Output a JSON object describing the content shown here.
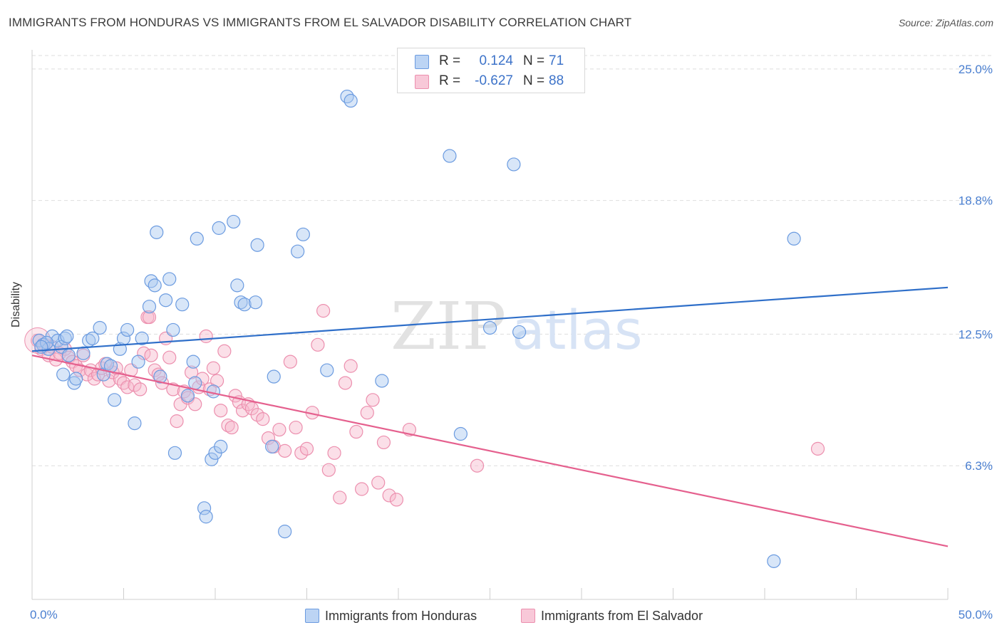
{
  "title": "IMMIGRANTS FROM HONDURAS VS IMMIGRANTS FROM EL SALVADOR DISABILITY CORRELATION CHART",
  "source": "Source: ZipAtlas.com",
  "watermark": {
    "zip": "ZIP",
    "atlas": "atlas"
  },
  "stats": {
    "honduras": {
      "r_label": "R =",
      "r_value": "0.124",
      "n_label": "N =",
      "n_value": "71"
    },
    "salvador": {
      "r_label": "R =",
      "r_value": "-0.627",
      "n_label": "N =",
      "n_value": "88"
    }
  },
  "legend": {
    "honduras": "Immigrants from Honduras",
    "salvador": "Immigrants from El Salvador"
  },
  "colors": {
    "honduras_fill": "#a9c8f0",
    "honduras_stroke": "#6b9be0",
    "honduras_line": "#2f6fc9",
    "salvador_fill": "#f6b9cc",
    "salvador_stroke": "#ec8fae",
    "salvador_line": "#e5608e"
  },
  "chart_data": {
    "type": "scatter",
    "title": "IMMIGRANTS FROM HONDURAS VS IMMIGRANTS FROM EL SALVADOR DISABILITY CORRELATION CHART",
    "xlabel": "",
    "ylabel": "Disability",
    "xlim": [
      0,
      50
    ],
    "ylim": [
      0,
      25.9
    ],
    "x_tick_labels": [
      {
        "value": 0,
        "label": "0.0%"
      },
      {
        "value": 50,
        "label": "50.0%"
      }
    ],
    "y_tick_labels": [
      {
        "value": 6.3,
        "label": "6.3%"
      },
      {
        "value": 12.5,
        "label": "12.5%"
      },
      {
        "value": 18.8,
        "label": "18.8%"
      },
      {
        "value": 25.0,
        "label": "25.0%"
      }
    ],
    "grid": "horizontal-dashed",
    "legend_position": "bottom",
    "series": [
      {
        "name": "Immigrants from Honduras",
        "trend": {
          "x": [
            0,
            50
          ],
          "y": [
            11.7,
            14.7
          ]
        },
        "points": [
          [
            0.4,
            12.2
          ],
          [
            0.6,
            12.0
          ],
          [
            0.9,
            11.8
          ],
          [
            1.1,
            12.4
          ],
          [
            1.4,
            12.2
          ],
          [
            1.6,
            11.9
          ],
          [
            1.8,
            12.3
          ],
          [
            0.8,
            12.1
          ],
          [
            0.5,
            11.9
          ],
          [
            1.9,
            12.4
          ],
          [
            1.7,
            10.6
          ],
          [
            2.3,
            10.2
          ],
          [
            2.4,
            10.4
          ],
          [
            2.8,
            11.6
          ],
          [
            3.1,
            12.2
          ],
          [
            3.3,
            12.3
          ],
          [
            3.7,
            12.8
          ],
          [
            3.9,
            10.6
          ],
          [
            4.1,
            11.1
          ],
          [
            4.3,
            11.0
          ],
          [
            4.5,
            9.4
          ],
          [
            4.8,
            11.8
          ],
          [
            5.0,
            12.3
          ],
          [
            5.2,
            12.7
          ],
          [
            5.6,
            8.3
          ],
          [
            5.8,
            11.2
          ],
          [
            6.0,
            12.3
          ],
          [
            6.4,
            13.8
          ],
          [
            6.5,
            15.0
          ],
          [
            6.7,
            14.8
          ],
          [
            6.8,
            17.3
          ],
          [
            7.0,
            10.5
          ],
          [
            7.3,
            14.1
          ],
          [
            7.5,
            15.1
          ],
          [
            7.8,
            6.9
          ],
          [
            7.7,
            12.7
          ],
          [
            8.2,
            13.9
          ],
          [
            8.5,
            9.6
          ],
          [
            8.8,
            11.2
          ],
          [
            8.9,
            10.2
          ],
          [
            9.0,
            17.0
          ],
          [
            9.4,
            4.3
          ],
          [
            9.5,
            3.9
          ],
          [
            9.8,
            6.6
          ],
          [
            9.9,
            9.8
          ],
          [
            10.0,
            6.9
          ],
          [
            10.2,
            17.5
          ],
          [
            10.3,
            7.2
          ],
          [
            11.0,
            17.8
          ],
          [
            11.2,
            14.8
          ],
          [
            11.4,
            14.0
          ],
          [
            11.6,
            13.9
          ],
          [
            12.2,
            14.0
          ],
          [
            12.3,
            16.7
          ],
          [
            13.1,
            7.2
          ],
          [
            13.2,
            10.5
          ],
          [
            13.8,
            3.2
          ],
          [
            14.5,
            16.4
          ],
          [
            14.8,
            17.2
          ],
          [
            16.1,
            10.8
          ],
          [
            17.2,
            23.7
          ],
          [
            17.4,
            23.5
          ],
          [
            19.1,
            10.3
          ],
          [
            22.8,
            20.9
          ],
          [
            23.4,
            7.8
          ],
          [
            25.0,
            12.8
          ],
          [
            26.3,
            20.5
          ],
          [
            26.6,
            12.6
          ],
          [
            41.6,
            17.0
          ],
          [
            40.5,
            1.8
          ],
          [
            2.0,
            11.5
          ]
        ]
      },
      {
        "name": "Immigrants from El Salvador",
        "trend": {
          "x": [
            0,
            50
          ],
          "y": [
            11.5,
            2.5
          ]
        },
        "points": [
          [
            0.3,
            12.2
          ],
          [
            0.5,
            11.8
          ],
          [
            0.7,
            12.0
          ],
          [
            0.9,
            11.5
          ],
          [
            1.1,
            11.9
          ],
          [
            1.3,
            11.3
          ],
          [
            1.5,
            11.6
          ],
          [
            1.8,
            11.8
          ],
          [
            2.0,
            11.4
          ],
          [
            2.2,
            11.2
          ],
          [
            2.4,
            11.0
          ],
          [
            2.6,
            10.8
          ],
          [
            2.8,
            11.5
          ],
          [
            3.0,
            10.6
          ],
          [
            3.2,
            10.8
          ],
          [
            3.4,
            10.4
          ],
          [
            3.6,
            10.6
          ],
          [
            3.8,
            10.9
          ],
          [
            4.0,
            11.1
          ],
          [
            4.2,
            10.3
          ],
          [
            4.4,
            10.7
          ],
          [
            4.6,
            10.9
          ],
          [
            4.8,
            10.4
          ],
          [
            5.0,
            10.2
          ],
          [
            5.2,
            10.0
          ],
          [
            5.4,
            10.8
          ],
          [
            5.6,
            10.1
          ],
          [
            5.9,
            9.9
          ],
          [
            6.1,
            11.6
          ],
          [
            6.3,
            13.3
          ],
          [
            6.4,
            13.3
          ],
          [
            6.5,
            11.5
          ],
          [
            6.7,
            10.8
          ],
          [
            6.9,
            10.6
          ],
          [
            7.1,
            10.2
          ],
          [
            7.3,
            12.3
          ],
          [
            7.5,
            11.4
          ],
          [
            7.7,
            9.9
          ],
          [
            7.9,
            8.4
          ],
          [
            8.1,
            9.2
          ],
          [
            8.3,
            9.8
          ],
          [
            8.5,
            9.5
          ],
          [
            8.7,
            10.7
          ],
          [
            8.9,
            9.2
          ],
          [
            9.1,
            10.0
          ],
          [
            9.3,
            10.4
          ],
          [
            9.5,
            12.4
          ],
          [
            9.7,
            9.9
          ],
          [
            9.9,
            10.9
          ],
          [
            10.1,
            10.3
          ],
          [
            10.3,
            8.9
          ],
          [
            10.5,
            11.7
          ],
          [
            10.7,
            8.2
          ],
          [
            10.9,
            8.1
          ],
          [
            11.1,
            9.6
          ],
          [
            11.3,
            9.3
          ],
          [
            11.5,
            8.9
          ],
          [
            11.8,
            9.2
          ],
          [
            12.0,
            9.0
          ],
          [
            12.3,
            8.7
          ],
          [
            12.6,
            8.5
          ],
          [
            12.9,
            7.6
          ],
          [
            13.2,
            7.2
          ],
          [
            13.5,
            8.0
          ],
          [
            13.8,
            7.0
          ],
          [
            14.1,
            11.2
          ],
          [
            14.4,
            8.1
          ],
          [
            14.7,
            6.9
          ],
          [
            15.0,
            7.1
          ],
          [
            15.3,
            8.8
          ],
          [
            15.6,
            12.0
          ],
          [
            15.9,
            13.6
          ],
          [
            16.2,
            6.1
          ],
          [
            16.5,
            6.9
          ],
          [
            16.8,
            4.8
          ],
          [
            17.1,
            10.2
          ],
          [
            17.4,
            11.0
          ],
          [
            17.7,
            7.9
          ],
          [
            18.0,
            5.2
          ],
          [
            18.3,
            8.8
          ],
          [
            18.6,
            9.4
          ],
          [
            18.9,
            5.5
          ],
          [
            19.2,
            7.4
          ],
          [
            19.5,
            4.9
          ],
          [
            19.9,
            4.7
          ],
          [
            20.6,
            8.0
          ],
          [
            24.3,
            6.3
          ],
          [
            42.9,
            7.1
          ]
        ]
      }
    ]
  }
}
